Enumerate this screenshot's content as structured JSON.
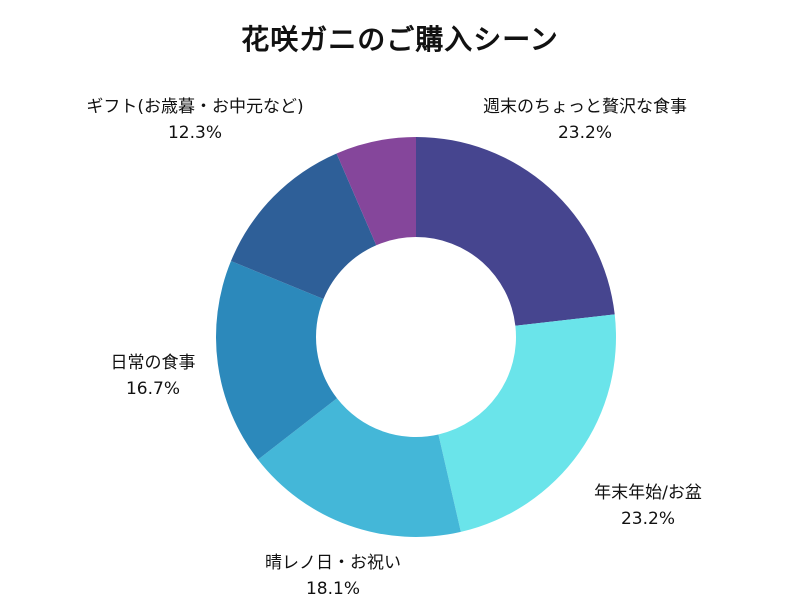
{
  "chart_data": {
    "type": "pie",
    "title": "花咲ガニのご購入シーン",
    "donut": true,
    "categories": [
      "週末のちょっと贅沢な食事",
      "年末年始/お盆",
      "晴レノ日・お祝い",
      "日常の食事",
      "ギフト(お歳暮・お中元など)",
      ""
    ],
    "values": [
      23.2,
      23.2,
      18.1,
      16.7,
      12.3,
      6.5
    ],
    "value_labels": [
      "23.2%",
      "23.2%",
      "18.1%",
      "16.7%",
      "12.3%",
      ""
    ],
    "colors": [
      "#46458f",
      "#6ae4ea",
      "#44b7d8",
      "#2c89bb",
      "#2e5f98",
      "#85469b"
    ]
  }
}
